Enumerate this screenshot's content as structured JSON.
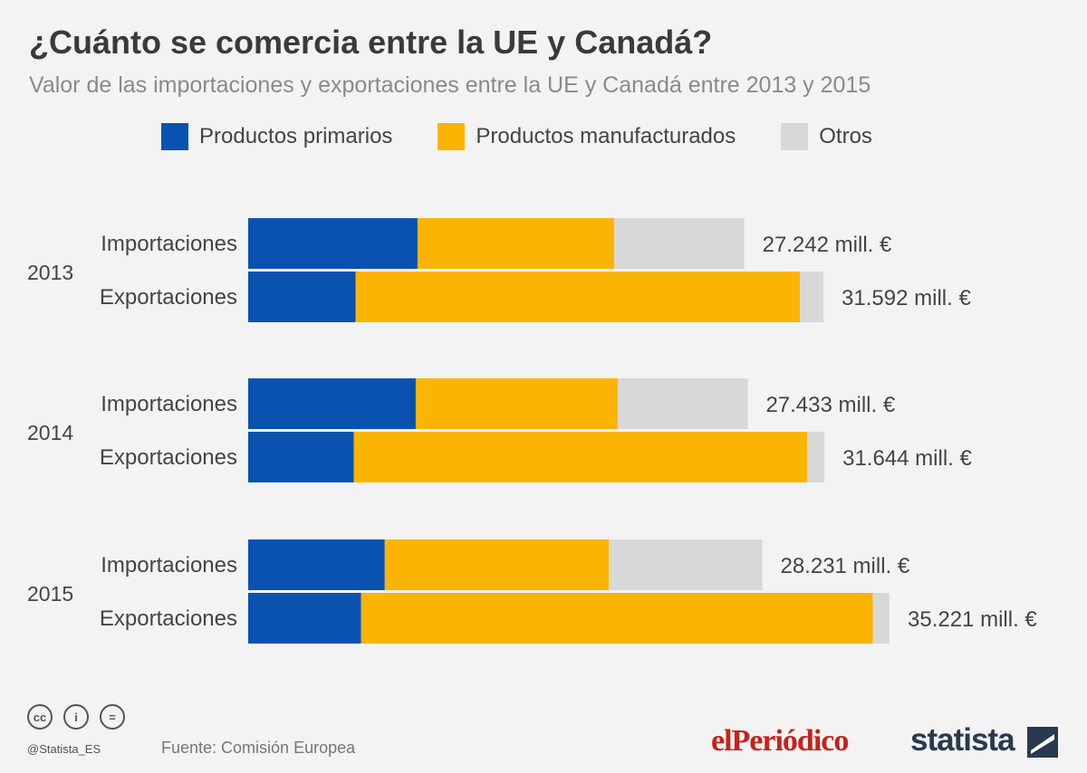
{
  "chart_data": {
    "type": "bar",
    "orientation": "horizontal",
    "stacked": true,
    "title": "¿Cuánto se comercia entre la UE y Canadá?",
    "subtitle": "Valor de las importaciones y exportaciones entre la UE y Canadá entre 2013 y 2015",
    "unit": "mill. €",
    "legend": [
      {
        "name": "Productos primarios",
        "color": "#0a52b0"
      },
      {
        "name": "Productos manufacturados",
        "color": "#fbb400"
      },
      {
        "name": "Otros",
        "color": "#d8d8d8"
      }
    ],
    "groups": [
      {
        "year": "2013",
        "rows": [
          {
            "label": "Importaciones",
            "total_label": "27.242 mill. €",
            "values": [
              9300,
              10800,
              7142
            ]
          },
          {
            "label": "Exportaciones",
            "total_label": "31.592 mill. €",
            "values": [
              5900,
              24400,
              1292
            ]
          }
        ]
      },
      {
        "year": "2014",
        "rows": [
          {
            "label": "Importaciones",
            "total_label": "27.433 mill. €",
            "values": [
              9200,
              11100,
              7133
            ]
          },
          {
            "label": "Exportaciones",
            "total_label": "31.644 mill. €",
            "values": [
              5800,
              24900,
              944
            ]
          }
        ]
      },
      {
        "year": "2015",
        "rows": [
          {
            "label": "Importaciones",
            "total_label": "28.231 mill. €",
            "values": [
              7500,
              12300,
              8431
            ]
          },
          {
            "label": "Exportaciones",
            "total_label": "35.221 mill. €",
            "values": [
              6200,
              28100,
              921
            ]
          }
        ]
      }
    ],
    "xlim": [
      0,
      35221
    ]
  },
  "footer": {
    "source": "Fuente: Comisión Europea",
    "handle": "@Statista_ES",
    "cc_icons": [
      "cc",
      "i",
      "="
    ],
    "brand_left": "elPeriódico",
    "brand_right": "statista"
  }
}
